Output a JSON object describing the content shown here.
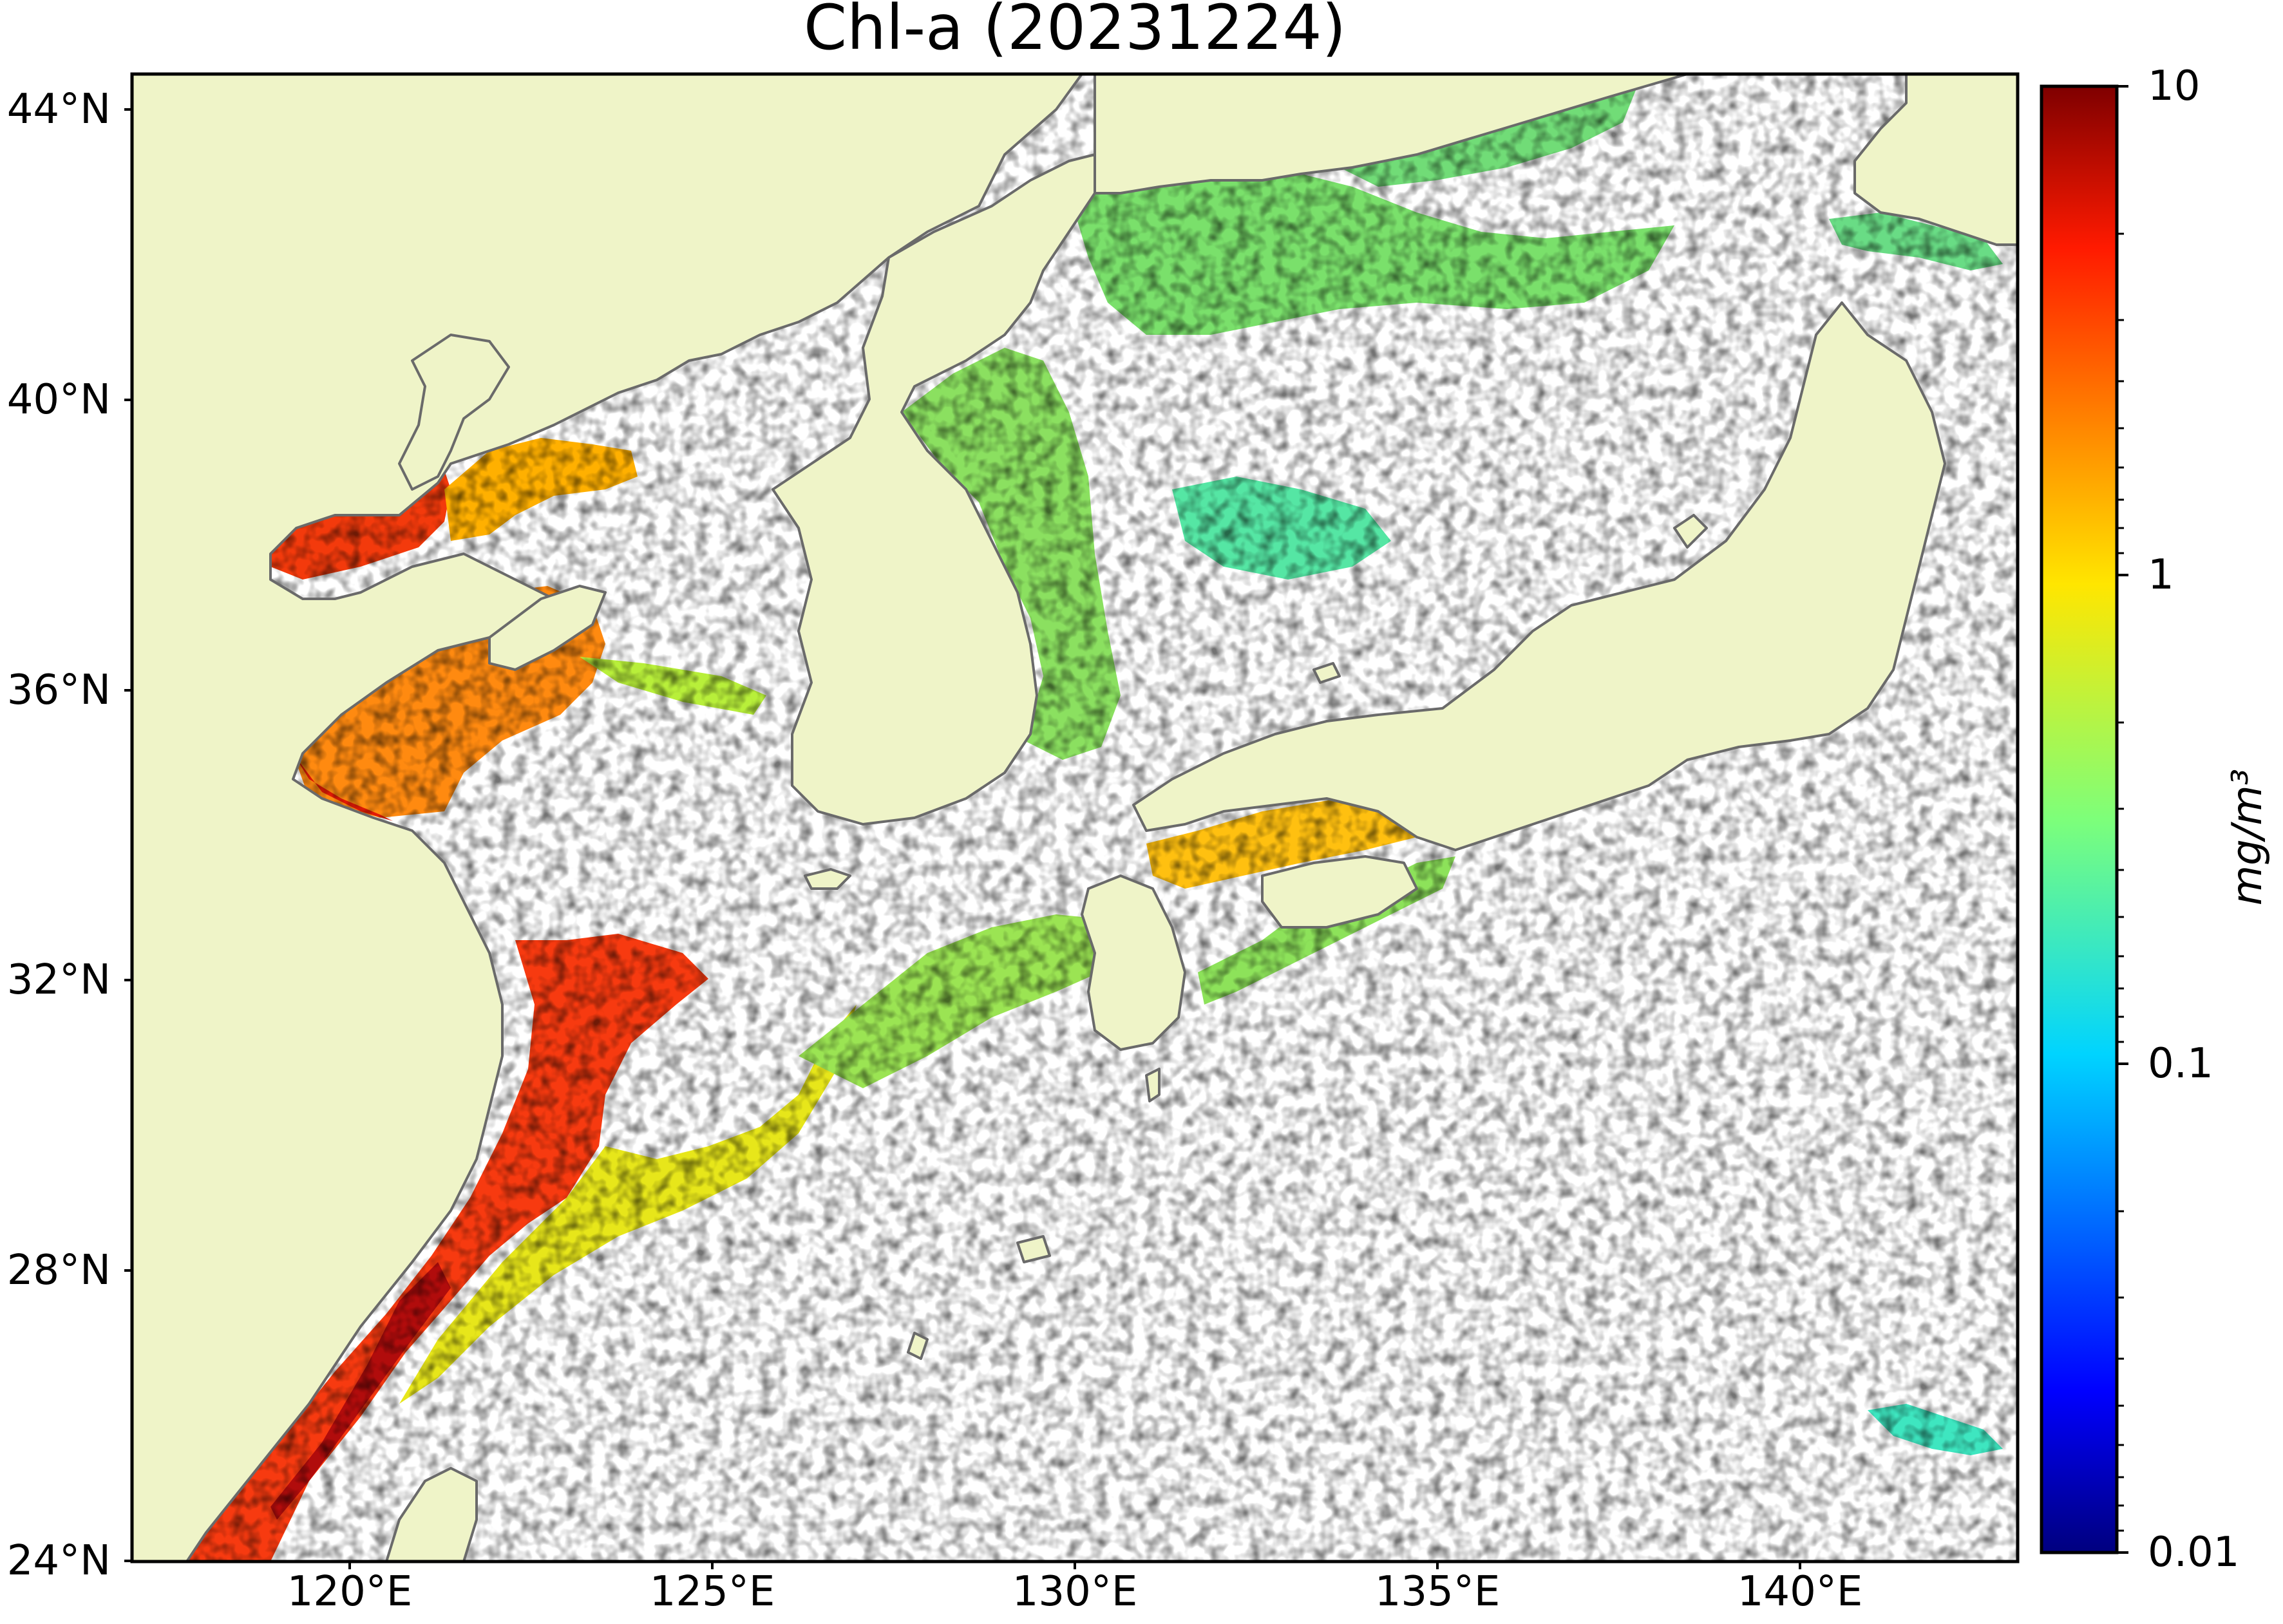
{
  "title": "Chl-a (20231224)",
  "map": {
    "extent": {
      "lon": [
        117,
        143
      ],
      "lat": [
        24,
        44.5
      ]
    },
    "latitude_labels": [
      {
        "value": 44,
        "text": "44°N"
      },
      {
        "value": 40,
        "text": "40°N"
      },
      {
        "value": 36,
        "text": "36°N"
      },
      {
        "value": 32,
        "text": "32°N"
      },
      {
        "value": 28,
        "text": "28°N"
      },
      {
        "value": 24,
        "text": "24°N"
      }
    ],
    "longitude_labels": [
      {
        "value": 120,
        "text": "120°E"
      },
      {
        "value": 125,
        "text": "125°E"
      },
      {
        "value": 130,
        "text": "130°E"
      },
      {
        "value": 135,
        "text": "135°E"
      },
      {
        "value": 140,
        "text": "140°E"
      }
    ],
    "colors": {
      "land": "#eff4c8",
      "ocean_no_data": "#ffffff",
      "coastline": "#6a6a6a",
      "frame": "#000000"
    }
  },
  "colorbar": {
    "scale": "log",
    "range": [
      0.01,
      10
    ],
    "colormap": "jet",
    "unit": "mg/m³",
    "tick_labels": [
      {
        "value": 10,
        "text": "10"
      },
      {
        "value": 1,
        "text": "1"
      },
      {
        "value": 0.1,
        "text": "0.1"
      },
      {
        "value": 0.01,
        "text": "0.01"
      }
    ]
  }
}
